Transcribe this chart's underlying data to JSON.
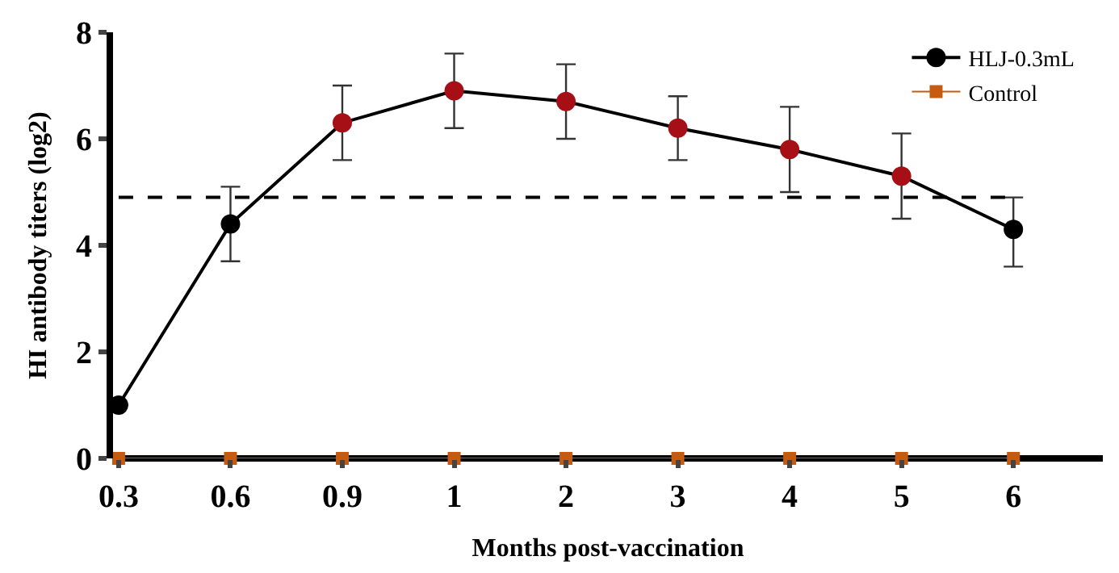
{
  "chart_data": {
    "type": "line",
    "xlabel": "Months post-vaccination",
    "ylabel": "HI antibody titers (log2)",
    "categories": [
      "0.3",
      "0.6",
      "0.9",
      "1",
      "2",
      "3",
      "4",
      "5",
      "6"
    ],
    "ylim": [
      0,
      8
    ],
    "yticks": [
      0,
      2,
      4,
      6,
      8
    ],
    "legend": "top right",
    "marker": "circle",
    "line_style": "solid",
    "series": [
      {
        "name": "HLJ-0.3mL",
        "color": "#000000",
        "colors": [
          "#000000",
          "#000000",
          "#a50f15",
          "#a50f15",
          "#a50f15",
          "#a50f15",
          "#a50f15",
          "#a50f15",
          "#000000"
        ],
        "values": [
          1.0,
          4.4,
          6.3,
          6.9,
          6.7,
          6.2,
          5.8,
          5.3,
          4.3
        ],
        "errors": [
          null,
          [
            3.7,
            5.1
          ],
          [
            5.6,
            7.0
          ],
          [
            6.2,
            7.6
          ],
          [
            6.0,
            7.4
          ],
          [
            5.6,
            6.8
          ],
          [
            5.0,
            6.6
          ],
          [
            4.5,
            6.1
          ],
          [
            3.6,
            4.9
          ]
        ]
      },
      {
        "name": "Control",
        "color": "#c55a11",
        "marker": "square",
        "values": [
          0,
          0,
          0,
          0,
          0,
          0,
          0,
          0,
          0
        ]
      }
    ],
    "ref_lines": [
      {
        "axis": "y",
        "value": 4.9,
        "label": null,
        "color": "#000000",
        "line_style": "dashed"
      }
    ]
  }
}
